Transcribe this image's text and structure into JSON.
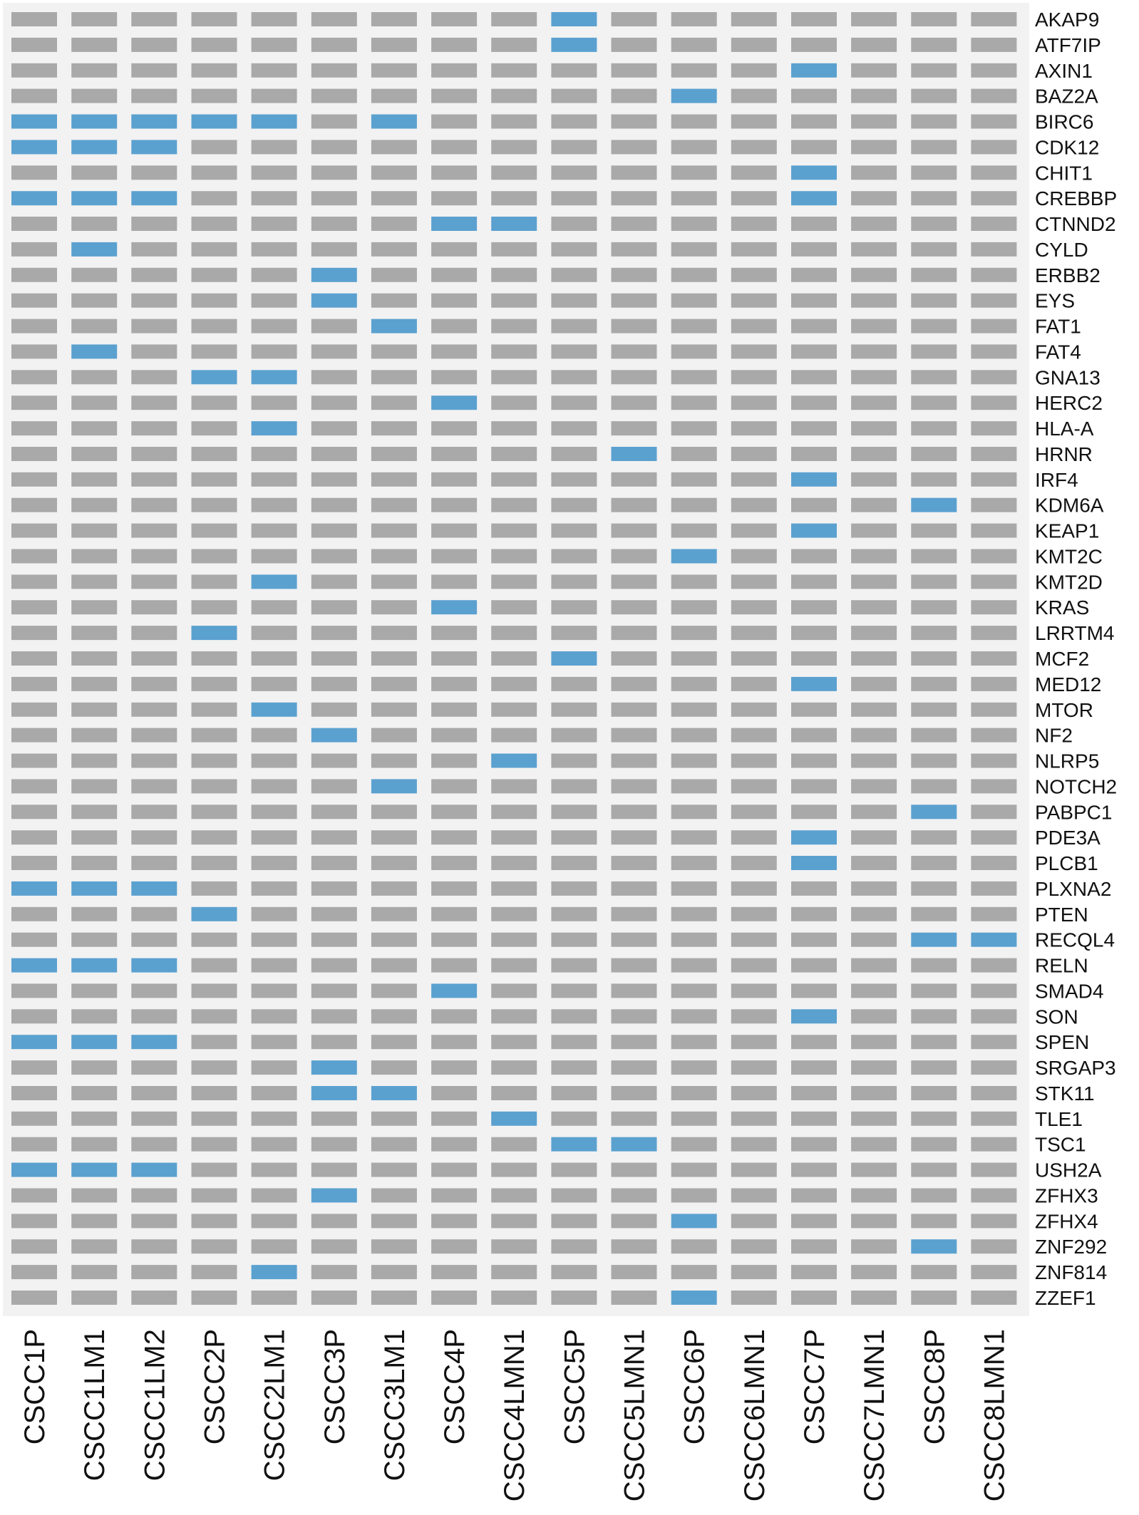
{
  "chart_data": {
    "type": "heatmap",
    "title": "",
    "xlabel": "",
    "ylabel": "",
    "grid": false,
    "legend": "none",
    "samples": [
      "CSCC1P",
      "CSCC1LM1",
      "CSCC1LM2",
      "CSCC2P",
      "CSCC2LM1",
      "CSCC3P",
      "CSCC3LM1",
      "CSCC4P",
      "CSCC4LMN1",
      "CSCC5P",
      "CSCC5LMN1",
      "CSCC6P",
      "CSCC6LMN1",
      "CSCC7P",
      "CSCC7LMN1",
      "CSCC8P",
      "CSCC8LMN1"
    ],
    "genes": [
      "AKAP9",
      "ATF7IP",
      "AXIN1",
      "BAZ2A",
      "BIRC6",
      "CDK12",
      "CHIT1",
      "CREBBP",
      "CTNND2",
      "CYLD",
      "ERBB2",
      "EYS",
      "FAT1",
      "FAT4",
      "GNA13",
      "HERC2",
      "HLA-A",
      "HRNR",
      "IRF4",
      "KDM6A",
      "KEAP1",
      "KMT2C",
      "KMT2D",
      "KRAS",
      "LRRTM4",
      "MCF2",
      "MED12",
      "MTOR",
      "NF2",
      "NLRP5",
      "NOTCH2",
      "PABPC1",
      "PDE3A",
      "PLCB1",
      "PLXNA2",
      "PTEN",
      "RECQL4",
      "RELN",
      "SMAD4",
      "SON",
      "SPEN",
      "SRGAP3",
      "STK11",
      "TLE1",
      "TSC1",
      "USH2A",
      "ZFHX3",
      "ZFHX4",
      "ZNF292",
      "ZNF814",
      "ZZEF1"
    ],
    "values": [
      [
        0,
        0,
        0,
        0,
        0,
        0,
        0,
        0,
        0,
        1,
        0,
        0,
        0,
        0,
        0,
        0,
        0
      ],
      [
        0,
        0,
        0,
        0,
        0,
        0,
        0,
        0,
        0,
        1,
        0,
        0,
        0,
        0,
        0,
        0,
        0
      ],
      [
        0,
        0,
        0,
        0,
        0,
        0,
        0,
        0,
        0,
        0,
        0,
        0,
        0,
        1,
        0,
        0,
        0
      ],
      [
        0,
        0,
        0,
        0,
        0,
        0,
        0,
        0,
        0,
        0,
        0,
        1,
        0,
        0,
        0,
        0,
        0
      ],
      [
        1,
        1,
        1,
        1,
        1,
        0,
        1,
        0,
        0,
        0,
        0,
        0,
        0,
        0,
        0,
        0,
        0
      ],
      [
        1,
        1,
        1,
        0,
        0,
        0,
        0,
        0,
        0,
        0,
        0,
        0,
        0,
        0,
        0,
        0,
        0
      ],
      [
        0,
        0,
        0,
        0,
        0,
        0,
        0,
        0,
        0,
        0,
        0,
        0,
        0,
        1,
        0,
        0,
        0
      ],
      [
        1,
        1,
        1,
        0,
        0,
        0,
        0,
        0,
        0,
        0,
        0,
        0,
        0,
        1,
        0,
        0,
        0
      ],
      [
        0,
        0,
        0,
        0,
        0,
        0,
        0,
        1,
        1,
        0,
        0,
        0,
        0,
        0,
        0,
        0,
        0
      ],
      [
        0,
        1,
        0,
        0,
        0,
        0,
        0,
        0,
        0,
        0,
        0,
        0,
        0,
        0,
        0,
        0,
        0
      ],
      [
        0,
        0,
        0,
        0,
        0,
        1,
        0,
        0,
        0,
        0,
        0,
        0,
        0,
        0,
        0,
        0,
        0
      ],
      [
        0,
        0,
        0,
        0,
        0,
        1,
        0,
        0,
        0,
        0,
        0,
        0,
        0,
        0,
        0,
        0,
        0
      ],
      [
        0,
        0,
        0,
        0,
        0,
        0,
        1,
        0,
        0,
        0,
        0,
        0,
        0,
        0,
        0,
        0,
        0
      ],
      [
        0,
        1,
        0,
        0,
        0,
        0,
        0,
        0,
        0,
        0,
        0,
        0,
        0,
        0,
        0,
        0,
        0
      ],
      [
        0,
        0,
        0,
        1,
        1,
        0,
        0,
        0,
        0,
        0,
        0,
        0,
        0,
        0,
        0,
        0,
        0
      ],
      [
        0,
        0,
        0,
        0,
        0,
        0,
        0,
        1,
        0,
        0,
        0,
        0,
        0,
        0,
        0,
        0,
        0
      ],
      [
        0,
        0,
        0,
        0,
        1,
        0,
        0,
        0,
        0,
        0,
        0,
        0,
        0,
        0,
        0,
        0,
        0
      ],
      [
        0,
        0,
        0,
        0,
        0,
        0,
        0,
        0,
        0,
        0,
        1,
        0,
        0,
        0,
        0,
        0,
        0
      ],
      [
        0,
        0,
        0,
        0,
        0,
        0,
        0,
        0,
        0,
        0,
        0,
        0,
        0,
        1,
        0,
        0,
        0
      ],
      [
        0,
        0,
        0,
        0,
        0,
        0,
        0,
        0,
        0,
        0,
        0,
        0,
        0,
        0,
        0,
        1,
        0
      ],
      [
        0,
        0,
        0,
        0,
        0,
        0,
        0,
        0,
        0,
        0,
        0,
        0,
        0,
        1,
        0,
        0,
        0
      ],
      [
        0,
        0,
        0,
        0,
        0,
        0,
        0,
        0,
        0,
        0,
        0,
        1,
        0,
        0,
        0,
        0,
        0
      ],
      [
        0,
        0,
        0,
        0,
        1,
        0,
        0,
        0,
        0,
        0,
        0,
        0,
        0,
        0,
        0,
        0,
        0
      ],
      [
        0,
        0,
        0,
        0,
        0,
        0,
        0,
        1,
        0,
        0,
        0,
        0,
        0,
        0,
        0,
        0,
        0
      ],
      [
        0,
        0,
        0,
        1,
        0,
        0,
        0,
        0,
        0,
        0,
        0,
        0,
        0,
        0,
        0,
        0,
        0
      ],
      [
        0,
        0,
        0,
        0,
        0,
        0,
        0,
        0,
        0,
        1,
        0,
        0,
        0,
        0,
        0,
        0,
        0
      ],
      [
        0,
        0,
        0,
        0,
        0,
        0,
        0,
        0,
        0,
        0,
        0,
        0,
        0,
        1,
        0,
        0,
        0
      ],
      [
        0,
        0,
        0,
        0,
        1,
        0,
        0,
        0,
        0,
        0,
        0,
        0,
        0,
        0,
        0,
        0,
        0
      ],
      [
        0,
        0,
        0,
        0,
        0,
        1,
        0,
        0,
        0,
        0,
        0,
        0,
        0,
        0,
        0,
        0,
        0
      ],
      [
        0,
        0,
        0,
        0,
        0,
        0,
        0,
        0,
        1,
        0,
        0,
        0,
        0,
        0,
        0,
        0,
        0
      ],
      [
        0,
        0,
        0,
        0,
        0,
        0,
        1,
        0,
        0,
        0,
        0,
        0,
        0,
        0,
        0,
        0,
        0
      ],
      [
        0,
        0,
        0,
        0,
        0,
        0,
        0,
        0,
        0,
        0,
        0,
        0,
        0,
        0,
        0,
        1,
        0
      ],
      [
        0,
        0,
        0,
        0,
        0,
        0,
        0,
        0,
        0,
        0,
        0,
        0,
        0,
        1,
        0,
        0,
        0
      ],
      [
        0,
        0,
        0,
        0,
        0,
        0,
        0,
        0,
        0,
        0,
        0,
        0,
        0,
        1,
        0,
        0,
        0
      ],
      [
        1,
        1,
        1,
        0,
        0,
        0,
        0,
        0,
        0,
        0,
        0,
        0,
        0,
        0,
        0,
        0,
        0
      ],
      [
        0,
        0,
        0,
        1,
        0,
        0,
        0,
        0,
        0,
        0,
        0,
        0,
        0,
        0,
        0,
        0,
        0
      ],
      [
        0,
        0,
        0,
        0,
        0,
        0,
        0,
        0,
        0,
        0,
        0,
        0,
        0,
        0,
        0,
        1,
        1
      ],
      [
        1,
        1,
        1,
        0,
        0,
        0,
        0,
        0,
        0,
        0,
        0,
        0,
        0,
        0,
        0,
        0,
        0
      ],
      [
        0,
        0,
        0,
        0,
        0,
        0,
        0,
        1,
        0,
        0,
        0,
        0,
        0,
        0,
        0,
        0,
        0
      ],
      [
        0,
        0,
        0,
        0,
        0,
        0,
        0,
        0,
        0,
        0,
        0,
        0,
        0,
        1,
        0,
        0,
        0
      ],
      [
        1,
        1,
        1,
        0,
        0,
        0,
        0,
        0,
        0,
        0,
        0,
        0,
        0,
        0,
        0,
        0,
        0
      ],
      [
        0,
        0,
        0,
        0,
        0,
        1,
        0,
        0,
        0,
        0,
        0,
        0,
        0,
        0,
        0,
        0,
        0
      ],
      [
        0,
        0,
        0,
        0,
        0,
        1,
        1,
        0,
        0,
        0,
        0,
        0,
        0,
        0,
        0,
        0,
        0
      ],
      [
        0,
        0,
        0,
        0,
        0,
        0,
        0,
        0,
        1,
        0,
        0,
        0,
        0,
        0,
        0,
        0,
        0
      ],
      [
        0,
        0,
        0,
        0,
        0,
        0,
        0,
        0,
        0,
        1,
        1,
        0,
        0,
        0,
        0,
        0,
        0
      ],
      [
        1,
        1,
        1,
        0,
        0,
        0,
        0,
        0,
        0,
        0,
        0,
        0,
        0,
        0,
        0,
        0,
        0
      ],
      [
        0,
        0,
        0,
        0,
        0,
        1,
        0,
        0,
        0,
        0,
        0,
        0,
        0,
        0,
        0,
        0,
        0
      ],
      [
        0,
        0,
        0,
        0,
        0,
        0,
        0,
        0,
        0,
        0,
        0,
        1,
        0,
        0,
        0,
        0,
        0
      ],
      [
        0,
        0,
        0,
        0,
        0,
        0,
        0,
        0,
        0,
        0,
        0,
        0,
        0,
        0,
        0,
        1,
        0
      ],
      [
        0,
        0,
        0,
        0,
        1,
        0,
        0,
        0,
        0,
        0,
        0,
        0,
        0,
        0,
        0,
        0,
        0
      ],
      [
        0,
        0,
        0,
        0,
        0,
        0,
        0,
        0,
        0,
        0,
        0,
        1,
        0,
        0,
        0,
        0,
        0
      ]
    ],
    "colors": {
      "mutated": "#5ba1d0",
      "not_mutated": "#a9a9a9",
      "background": "#f2f2f2"
    }
  }
}
